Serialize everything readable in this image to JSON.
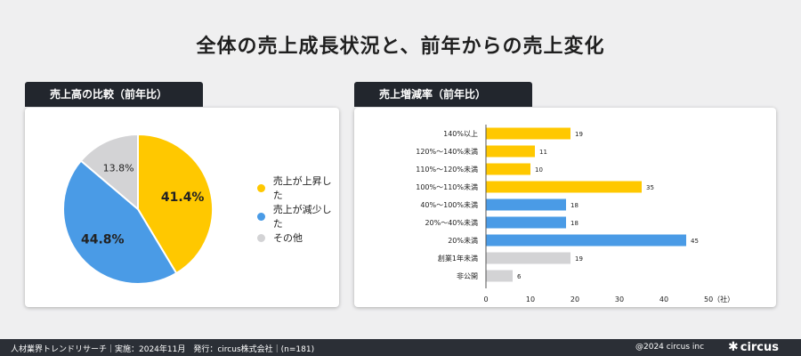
{
  "page": {
    "title": "全体の売上成長状況と、前年からの売上変化"
  },
  "pie_panel": {
    "tab": "売上高の比較（前年比）"
  },
  "bar_panel": {
    "tab": "売上増減率（前年比）"
  },
  "colors": {
    "up": "#ffc800",
    "down": "#4a9be6",
    "other": "#d3d3d5"
  },
  "chart_data": [
    {
      "type": "pie",
      "title": "売上高の比較（前年比）",
      "slices": [
        {
          "label": "売上が上昇した",
          "value": 41.4,
          "display": "41.4%",
          "color": "#ffc800"
        },
        {
          "label": "売上が減少した",
          "value": 44.8,
          "display": "44.8%",
          "color": "#4a9be6"
        },
        {
          "label": "その他",
          "value": 13.8,
          "display": "13.8%",
          "color": "#d3d3d5"
        }
      ],
      "legend": "right"
    },
    {
      "type": "bar",
      "orientation": "horizontal",
      "title": "売上増減率（前年比）",
      "categories": [
        "140%以上",
        "120%〜140%未満",
        "110%〜120%未満",
        "100%〜110%未満",
        "40%〜100%未満",
        "20%〜40%未満",
        "20%未満",
        "創業1年未満",
        "非公開"
      ],
      "values": [
        19,
        11,
        10,
        35,
        18,
        18,
        45,
        19,
        6
      ],
      "colors": [
        "#ffc800",
        "#ffc800",
        "#ffc800",
        "#ffc800",
        "#4a9be6",
        "#4a9be6",
        "#4a9be6",
        "#d3d3d5",
        "#d3d3d5"
      ],
      "xticks": [
        "0",
        "10",
        "20",
        "30",
        "40",
        "50（社）"
      ],
      "xlim": [
        0,
        50
      ],
      "grid": false
    }
  ],
  "footer": {
    "source": "人材業界トレンドリサーチ｜実施：2024年11月　発行：circus株式会社｜(n=181)",
    "copyright": "@2024 circus inc",
    "logo": "circus"
  }
}
